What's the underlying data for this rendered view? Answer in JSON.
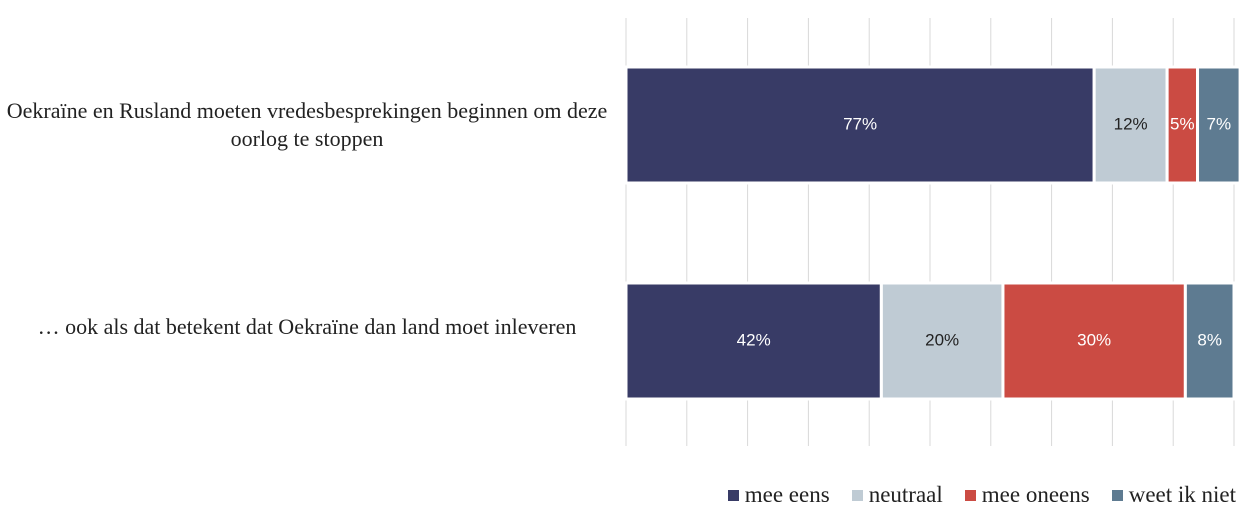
{
  "chart_data": {
    "type": "stacked_barh",
    "categories": [
      "Oekraïne en Rusland moeten vredesbesprekingen beginnen om deze oorlog te stoppen",
      "… ook als dat betekent dat Oekraïne dan land moet inleveren"
    ],
    "series": [
      {
        "name": "mee eens",
        "color": "#383b66",
        "values": [
          77,
          42
        ],
        "value_labels": [
          "77%",
          "42%"
        ]
      },
      {
        "name": "neutraal",
        "color": "#bfcbd4",
        "values": [
          12,
          20
        ],
        "value_labels": [
          "12%",
          "20%"
        ]
      },
      {
        "name": "mee oneens",
        "color": "#cb4b43",
        "values": [
          5,
          30
        ],
        "value_labels": [
          "5%",
          "30%"
        ]
      },
      {
        "name": "weet ik niet",
        "color": "#5e7b91",
        "values": [
          7,
          8
        ],
        "value_labels": [
          "7%",
          "8%"
        ]
      }
    ],
    "xlim": [
      0,
      100
    ],
    "xticks": [
      0,
      10,
      20,
      30,
      40,
      50,
      60,
      70,
      80,
      90,
      100
    ],
    "grid": true
  }
}
